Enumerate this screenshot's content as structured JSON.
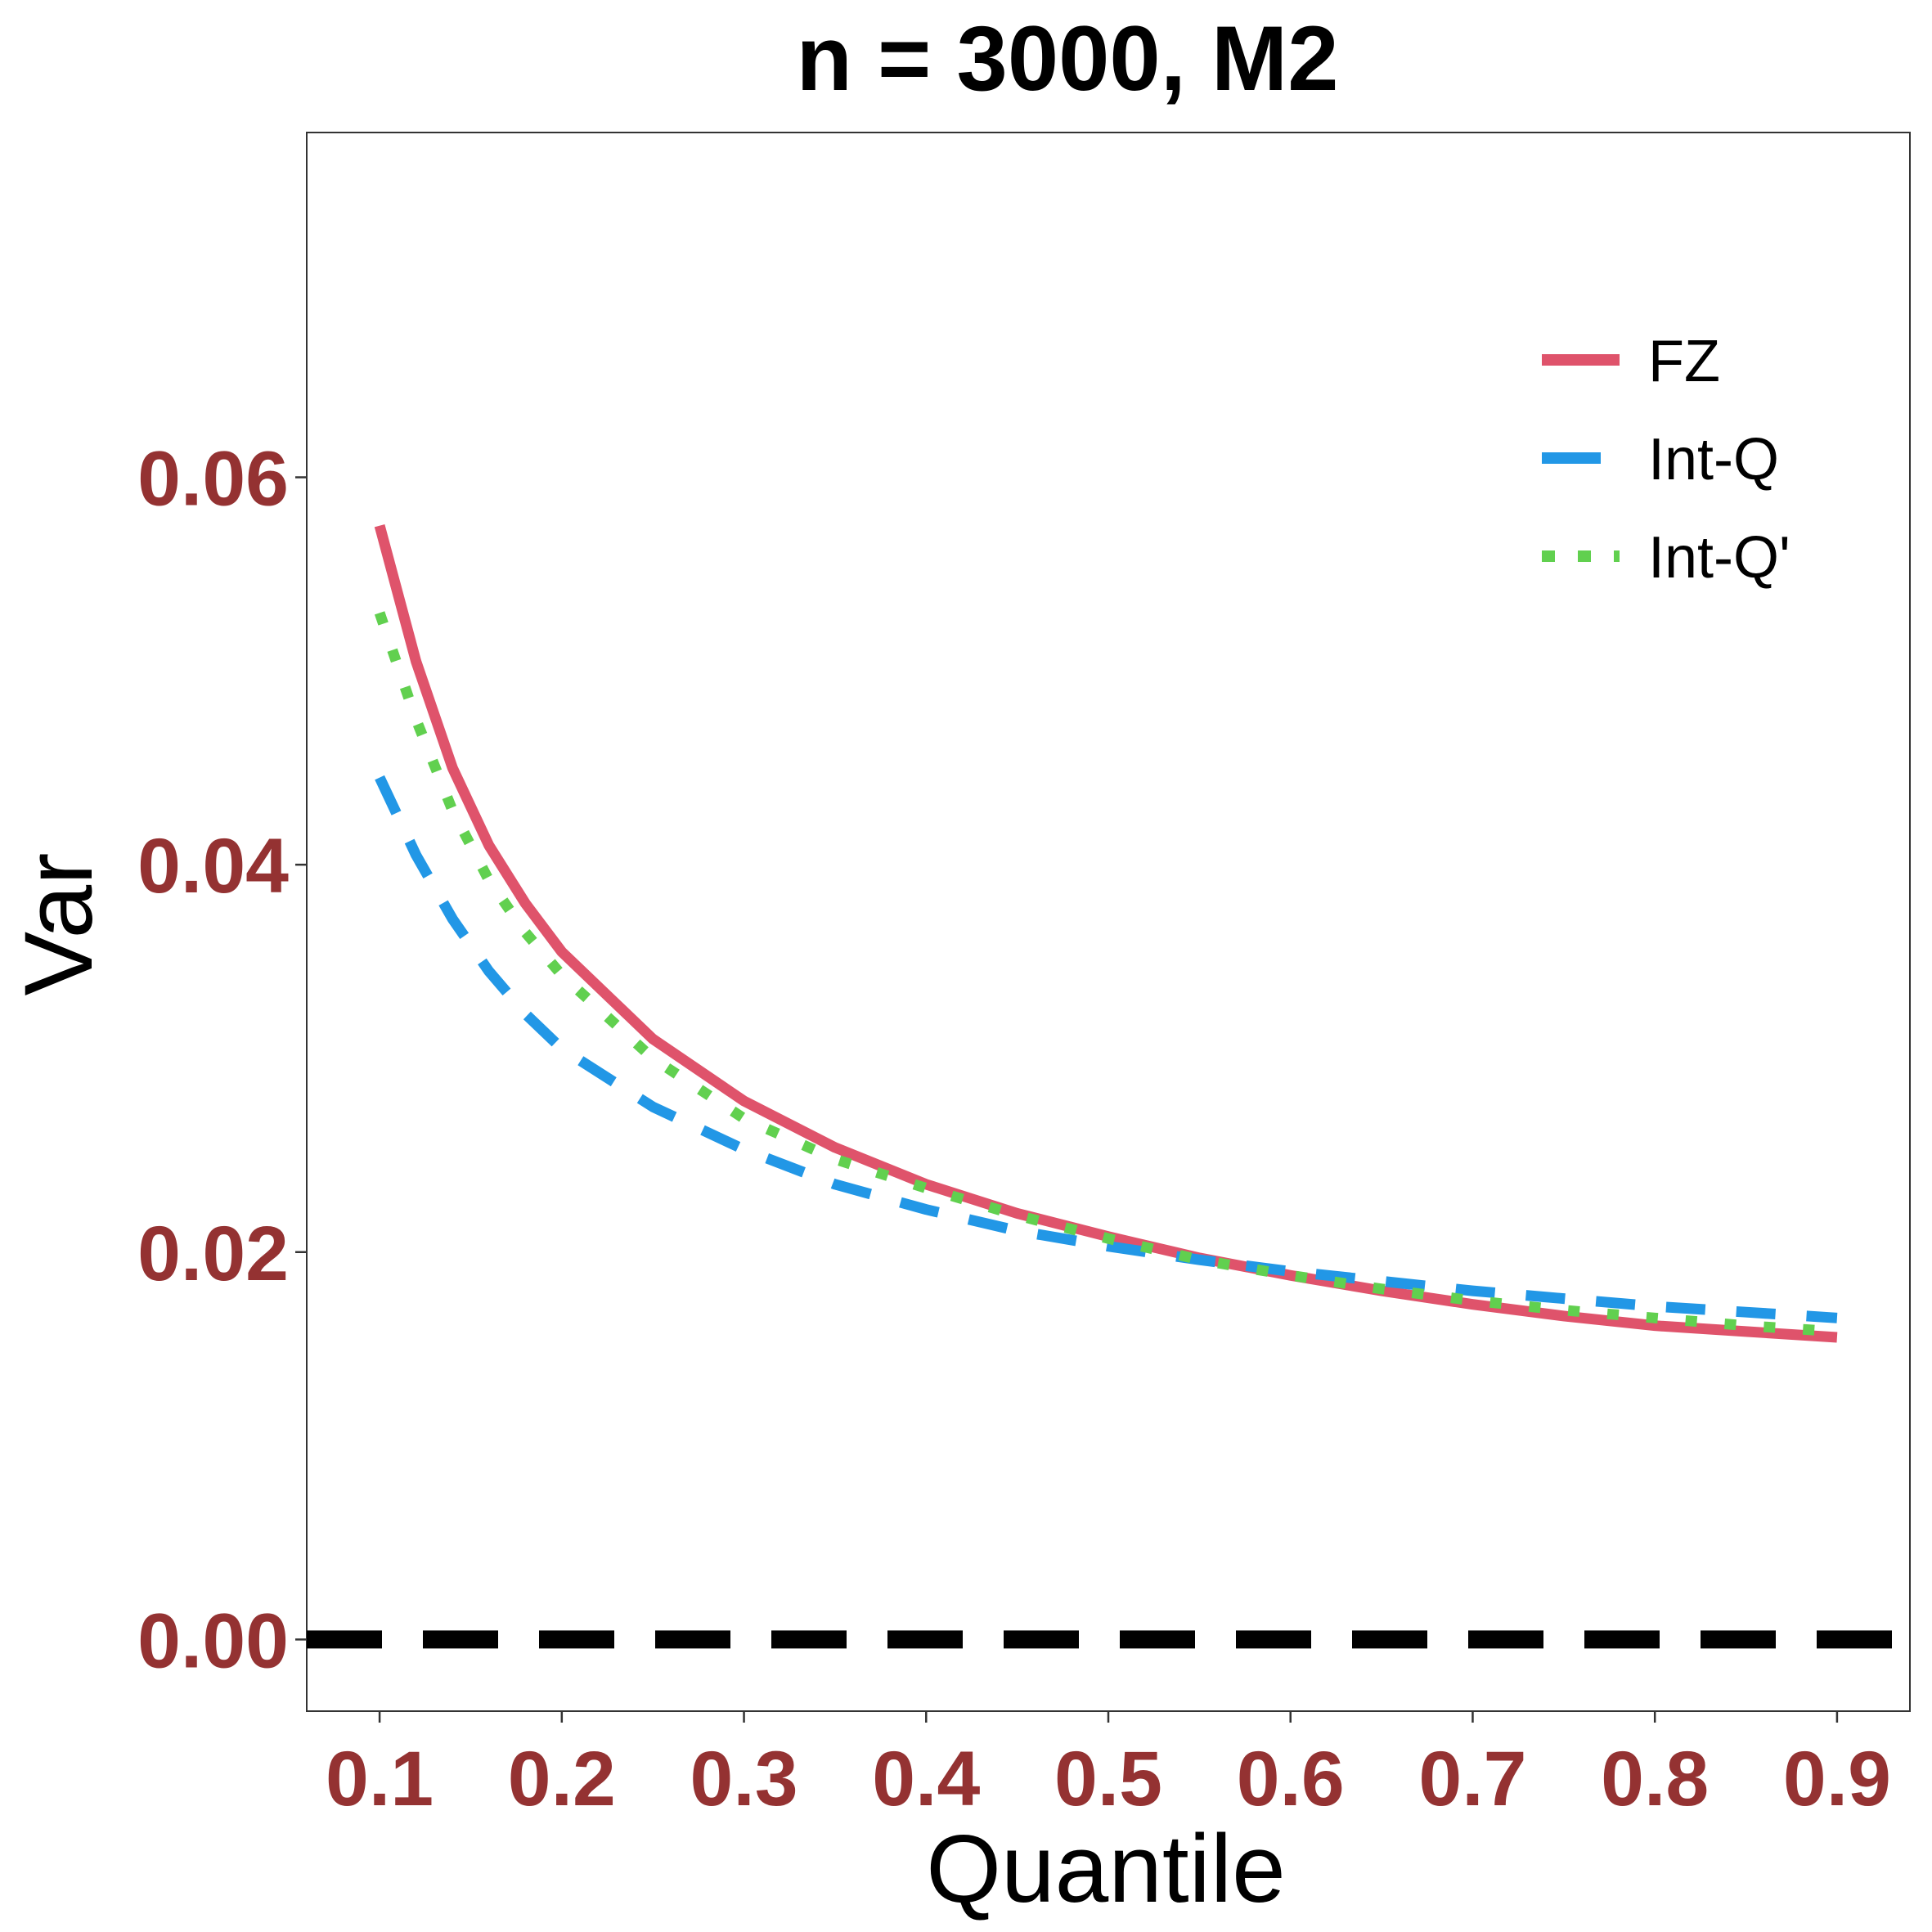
{
  "chart_data": {
    "type": "line",
    "title": "n = 3000, M2",
    "xlabel": "Quantile",
    "ylabel": "Var",
    "xlim": [
      0.06,
      0.94
    ],
    "ylim": [
      -0.0037,
      0.0778
    ],
    "x_ticks": [
      0.1,
      0.2,
      0.3,
      0.4,
      0.5,
      0.6,
      0.7,
      0.8,
      0.9
    ],
    "x_tick_labels": [
      "0.1",
      "0.2",
      "0.3",
      "0.4",
      "0.5",
      "0.6",
      "0.7",
      "0.8",
      "0.9"
    ],
    "y_ticks": [
      0.0,
      0.02,
      0.04,
      0.06
    ],
    "y_tick_labels": [
      "0.00",
      "0.02",
      "0.04",
      "0.06"
    ],
    "grid": false,
    "legend_position": "top-right",
    "reference_line": {
      "y": 0.0,
      "style": "dashed",
      "color": "#000000"
    },
    "x": [
      0.1,
      0.12,
      0.14,
      0.16,
      0.18,
      0.2,
      0.25,
      0.3,
      0.35,
      0.4,
      0.45,
      0.5,
      0.55,
      0.6,
      0.65,
      0.7,
      0.75,
      0.8,
      0.85,
      0.9
    ],
    "series": [
      {
        "name": "FZ",
        "color": "#DF536B",
        "style": "solid",
        "values": [
          0.0575,
          0.0505,
          0.045,
          0.041,
          0.038,
          0.0355,
          0.031,
          0.0278,
          0.0254,
          0.0235,
          0.022,
          0.0208,
          0.0197,
          0.0188,
          0.018,
          0.0173,
          0.0167,
          0.0162,
          0.0159,
          0.0156
        ]
      },
      {
        "name": "Int-Q",
        "color": "#2297E6",
        "style": "dashed",
        "values": [
          0.0445,
          0.0405,
          0.0372,
          0.0345,
          0.0323,
          0.0305,
          0.0275,
          0.0253,
          0.0235,
          0.0222,
          0.0211,
          0.0203,
          0.0196,
          0.019,
          0.0185,
          0.018,
          0.0176,
          0.0172,
          0.0169,
          0.0166
        ]
      },
      {
        "name": "Int-Q'",
        "color": "#61D04F",
        "style": "dotted",
        "values": [
          0.053,
          0.0475,
          0.0428,
          0.0392,
          0.0365,
          0.0343,
          0.03,
          0.0269,
          0.0248,
          0.0233,
          0.0219,
          0.0207,
          0.0196,
          0.0188,
          0.0181,
          0.0175,
          0.017,
          0.0166,
          0.0162,
          0.0159
        ]
      }
    ]
  }
}
